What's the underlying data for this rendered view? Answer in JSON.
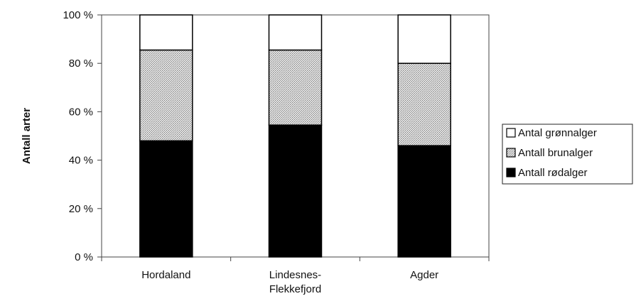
{
  "chart_data": {
    "type": "bar",
    "stacked": true,
    "percent": true,
    "categories": [
      "Hordaland",
      "Lindesnes-\nFlekkefjord",
      "Agder"
    ],
    "series": [
      {
        "name": "Antall rødalger",
        "values": [
          48,
          54.5,
          46
        ],
        "color": "#000000"
      },
      {
        "name": "Antall brunalger",
        "values": [
          37.5,
          31,
          34
        ],
        "color": "#c8c8c8"
      },
      {
        "name": "Antal grønnalger",
        "values": [
          14.5,
          14.5,
          20
        ],
        "color": "#ffffff"
      }
    ],
    "ylabel": "Antall arter",
    "xlabel": "",
    "ylim": [
      0,
      100
    ],
    "yticks": [
      "0 %",
      "20 %",
      "40 %",
      "60 %",
      "80 %",
      "100 %"
    ],
    "grid": false,
    "legend_position": "right",
    "legend_order": [
      "Antal grønnalger",
      "Antall brunalger",
      "Antall rødalger"
    ]
  }
}
